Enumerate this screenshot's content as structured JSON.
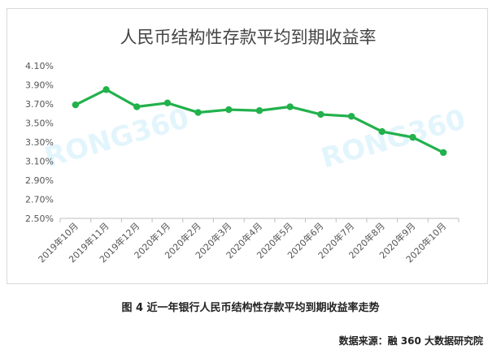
{
  "chart_data": {
    "type": "line",
    "title": "人民币结构性存款平均到期收益率",
    "categories": [
      "2019年10月",
      "2019年11月",
      "2019年12月",
      "2020年1月",
      "2020年2月",
      "2020年3月",
      "2020年4月",
      "2020年5月",
      "2020年6月",
      "2020年7月",
      "2020年8月",
      "2020年9月",
      "2020年10月"
    ],
    "series": [
      {
        "values": [
          3.69,
          3.85,
          3.67,
          3.71,
          3.61,
          3.64,
          3.63,
          3.67,
          3.59,
          3.57,
          3.41,
          3.35,
          3.19
        ]
      }
    ],
    "y_ticks": [
      "2.50%",
      "2.70%",
      "2.90%",
      "3.10%",
      "3.30%",
      "3.50%",
      "3.70%",
      "3.90%",
      "4.10%"
    ],
    "ylim": [
      2.5,
      4.1
    ],
    "ylabel": "",
    "xlabel": "",
    "grid": false,
    "line_color": "#22b14c",
    "watermarks": [
      "RONG360",
      "RONG360"
    ]
  },
  "caption": "图 4  近一年银行人民币结构性存款平均到期收益率走势",
  "source": "数据来源：融 360 大数据研究院"
}
